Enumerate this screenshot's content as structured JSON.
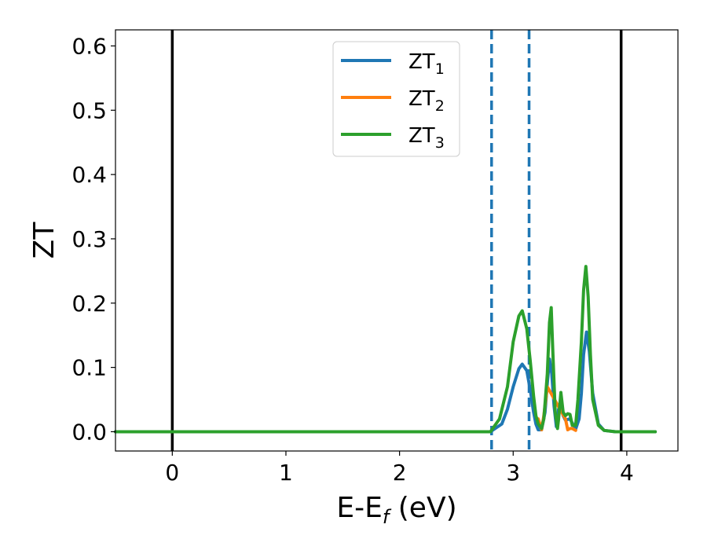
{
  "chart_data": {
    "type": "line",
    "xlabel": "E-E",
    "xlabel_sub": "f",
    "xlabel_unit": " (eV)",
    "ylabel": "ZT",
    "xlim": [
      -0.5,
      4.45
    ],
    "ylim": [
      -0.03,
      0.625
    ],
    "x_ticks": [
      0,
      1,
      2,
      3,
      4
    ],
    "x_tick_labels": [
      "0",
      "1",
      "2",
      "3",
      "4"
    ],
    "y_ticks": [
      0.0,
      0.1,
      0.2,
      0.3,
      0.4,
      0.5,
      0.6
    ],
    "y_tick_labels": [
      "0.0",
      "0.1",
      "0.2",
      "0.3",
      "0.4",
      "0.5",
      "0.6"
    ],
    "grid": false,
    "legend_position": "top-center",
    "vertical_lines": [
      {
        "x": 0.0,
        "style": "solid",
        "color": "#000000"
      },
      {
        "x": 3.95,
        "style": "solid",
        "color": "#000000"
      },
      {
        "x": 2.81,
        "style": "dashed",
        "color": "#1f77b4"
      },
      {
        "x": 3.14,
        "style": "dashed",
        "color": "#1f77b4"
      }
    ],
    "series": [
      {
        "name": "ZT",
        "subscript": "1",
        "color": "#1f77b4",
        "x": [
          -0.5,
          2.8,
          2.9,
          2.95,
          3.0,
          3.05,
          3.08,
          3.12,
          3.15,
          3.18,
          3.2,
          3.22,
          3.25,
          3.28,
          3.3,
          3.32,
          3.34,
          3.36,
          3.38,
          3.4,
          3.42,
          3.44,
          3.46,
          3.5,
          3.55,
          3.58,
          3.6,
          3.62,
          3.645,
          3.67,
          3.7,
          3.75,
          3.8,
          3.9,
          4.25
        ],
        "values": [
          0.0,
          0.0,
          0.012,
          0.035,
          0.07,
          0.098,
          0.105,
          0.095,
          0.065,
          0.03,
          0.012,
          0.003,
          0.003,
          0.03,
          0.075,
          0.113,
          0.09,
          0.04,
          0.008,
          0.035,
          0.045,
          0.025,
          0.018,
          0.02,
          0.004,
          0.02,
          0.06,
          0.12,
          0.155,
          0.125,
          0.06,
          0.012,
          0.002,
          0.0,
          0.0
        ]
      },
      {
        "name": "ZT",
        "subscript": "2",
        "color": "#ff7f0e",
        "x": [
          3.22,
          3.25,
          3.27,
          3.3,
          3.46,
          3.48,
          3.5,
          3.52,
          3.55
        ],
        "values": [
          0.02,
          0.003,
          0.025,
          0.07,
          0.02,
          0.003,
          0.005,
          0.005,
          0.002
        ]
      },
      {
        "name": "ZT",
        "subscript": "3",
        "color": "#2ca02c",
        "x": [
          -0.5,
          2.8,
          2.88,
          2.95,
          3.0,
          3.05,
          3.08,
          3.12,
          3.15,
          3.18,
          3.2,
          3.22,
          3.25,
          3.27,
          3.3,
          3.32,
          3.335,
          3.35,
          3.37,
          3.39,
          3.4,
          3.42,
          3.44,
          3.46,
          3.48,
          3.5,
          3.52,
          3.55,
          3.57,
          3.6,
          3.62,
          3.64,
          3.66,
          3.68,
          3.7,
          3.75,
          3.8,
          3.9,
          4.25
        ],
        "values": [
          0.0,
          0.0,
          0.02,
          0.07,
          0.14,
          0.18,
          0.188,
          0.16,
          0.11,
          0.055,
          0.025,
          0.012,
          0.005,
          0.02,
          0.09,
          0.17,
          0.193,
          0.12,
          0.03,
          0.005,
          0.02,
          0.061,
          0.03,
          0.025,
          0.028,
          0.027,
          0.01,
          0.01,
          0.05,
          0.14,
          0.22,
          0.257,
          0.21,
          0.12,
          0.05,
          0.01,
          0.002,
          0.0,
          0.0
        ]
      }
    ]
  }
}
